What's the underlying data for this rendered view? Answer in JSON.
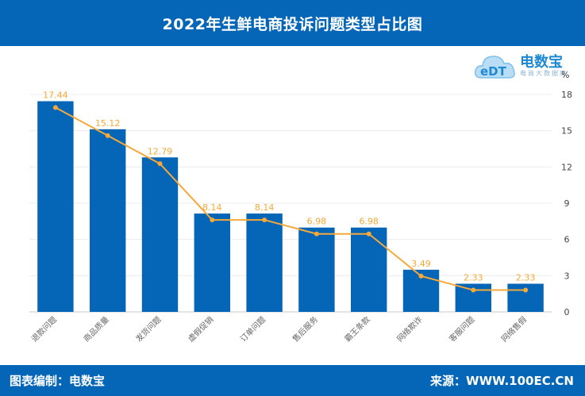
{
  "header": {
    "title": "2022年生鲜电商投诉问题类型占比图"
  },
  "footer": {
    "left": "图表编制：电数宝",
    "right": "来源：WWW.100EC.CN"
  },
  "logo": {
    "text": "电数宝",
    "sub": "电商大数据库",
    "icon": "cloud-edt-logo-icon"
  },
  "colors": {
    "bar": "#0565b6",
    "line": "#f5a93a",
    "header": "#0565b6"
  },
  "chart_data": {
    "type": "bar",
    "title": "2022年生鲜电商投诉问题类型占比图",
    "unit": "%",
    "categories": [
      "退款问题",
      "商品质量",
      "发货问题",
      "虚假促销",
      "订单问题",
      "售后服务",
      "霸王条款",
      "网络欺诈",
      "客服问题",
      "网络售假"
    ],
    "values": [
      17.44,
      15.12,
      12.79,
      8.14,
      8.14,
      6.98,
      6.98,
      3.49,
      2.33,
      2.33
    ],
    "data_labels": [
      "17.44",
      "15.12",
      "12.79",
      "8.14",
      "8.14",
      "6.98",
      "6.98",
      "3.49",
      "2.33",
      "2.33"
    ],
    "overlay_line": true,
    "y_ticks": [
      "0",
      "3",
      "6",
      "9",
      "12",
      "15",
      "18"
    ],
    "ylim": [
      0,
      18
    ],
    "y_axis_position": "right",
    "grid": true
  }
}
